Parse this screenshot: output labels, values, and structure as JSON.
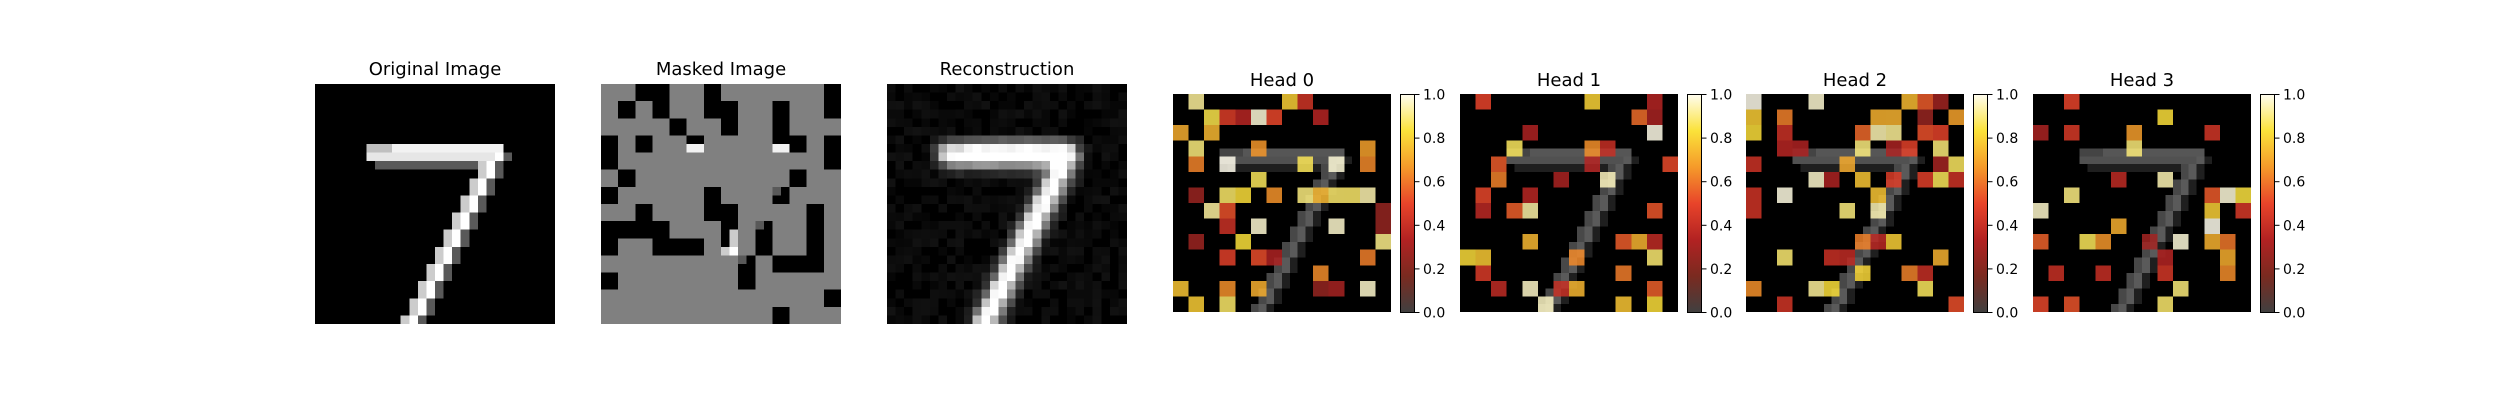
{
  "figure": {
    "panels": [
      {
        "title": "Original Image"
      },
      {
        "title": "Masked Image"
      },
      {
        "title": "Reconstruction"
      }
    ],
    "heads": [
      {
        "title": "Head 0"
      },
      {
        "title": "Head 1"
      },
      {
        "title": "Head 2"
      },
      {
        "title": "Head 3"
      }
    ],
    "colorbar": {
      "ticks": [
        "0.0",
        "0.2",
        "0.4",
        "0.6",
        "0.8",
        "1.0"
      ],
      "range": [
        0,
        1
      ],
      "colormap": [
        "#404040",
        "#7a2a20",
        "#b22222",
        "#e8442a",
        "#f59a2a",
        "#fbe23a",
        "#fffdf0"
      ]
    },
    "colors": {
      "mask_gray": "#808080",
      "digit_white": "#ffffff",
      "background": "#000000"
    }
  }
}
